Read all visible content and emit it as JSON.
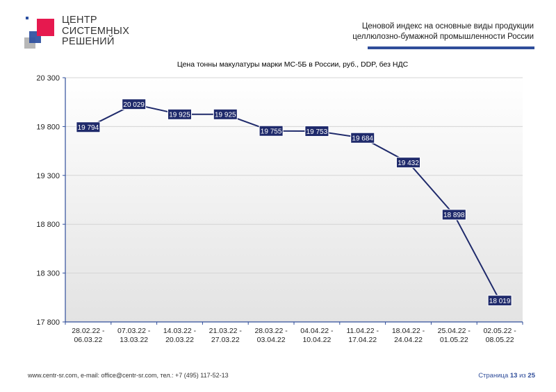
{
  "header": {
    "logo_lines": [
      "ЦЕНТР",
      "СИСТЕМНЫХ",
      "РЕШЕНИЙ"
    ],
    "title_lines": [
      "Ценовой индекс на основные виды продукции",
      "целлюлозно-бумажной промышленности России"
    ],
    "rule_color": "#2f4d9a"
  },
  "chart_data": {
    "type": "line",
    "title": "Цена тонны макулатуры марки МС-5Б в России, руб., DDP, без НДС",
    "xlabel": "",
    "ylabel": "",
    "ylim": [
      17800,
      20300
    ],
    "yticks": [
      17800,
      18300,
      18800,
      19300,
      19800,
      20300
    ],
    "ytick_labels": [
      "17 800",
      "18 300",
      "18 800",
      "19 300",
      "19 800",
      "20 300"
    ],
    "categories": [
      [
        "28.02.22 -",
        "06.03.22"
      ],
      [
        "07.03.22 -",
        "13.03.22"
      ],
      [
        "14.03.22 -",
        "20.03.22"
      ],
      [
        "21.03.22 -",
        "27.03.22"
      ],
      [
        "28.03.22 -",
        "03.04.22"
      ],
      [
        "04.04.22 -",
        "10.04.22"
      ],
      [
        "11.04.22 -",
        "17.04.22"
      ],
      [
        "18.04.22 -",
        "24.04.22"
      ],
      [
        "25.04.22 -",
        "01.05.22"
      ],
      [
        "02.05.22 -",
        "08.05.22"
      ]
    ],
    "series": [
      {
        "values": [
          19794,
          20029,
          19925,
          19925,
          19755,
          19753,
          19684,
          19432,
          18898,
          18019
        ],
        "labels": [
          "19 794",
          "20 029",
          "19 925",
          "19 925",
          "19 755",
          "19 753",
          "19 684",
          "19 432",
          "18 898",
          "18 019"
        ]
      }
    ],
    "grid": true,
    "line_color": "#1f2a6b",
    "label_bg": "#1f2a6b",
    "label_color": "#ffffff",
    "axis_color": "#2f4d9a"
  },
  "footer": {
    "contacts": "www.centr-sr.com, e-mail: office@centr-sr.com, тел.: +7 (495) 117-52-13",
    "page_word": "Страница",
    "page_current": "13",
    "page_of": "из",
    "page_total": "25"
  }
}
